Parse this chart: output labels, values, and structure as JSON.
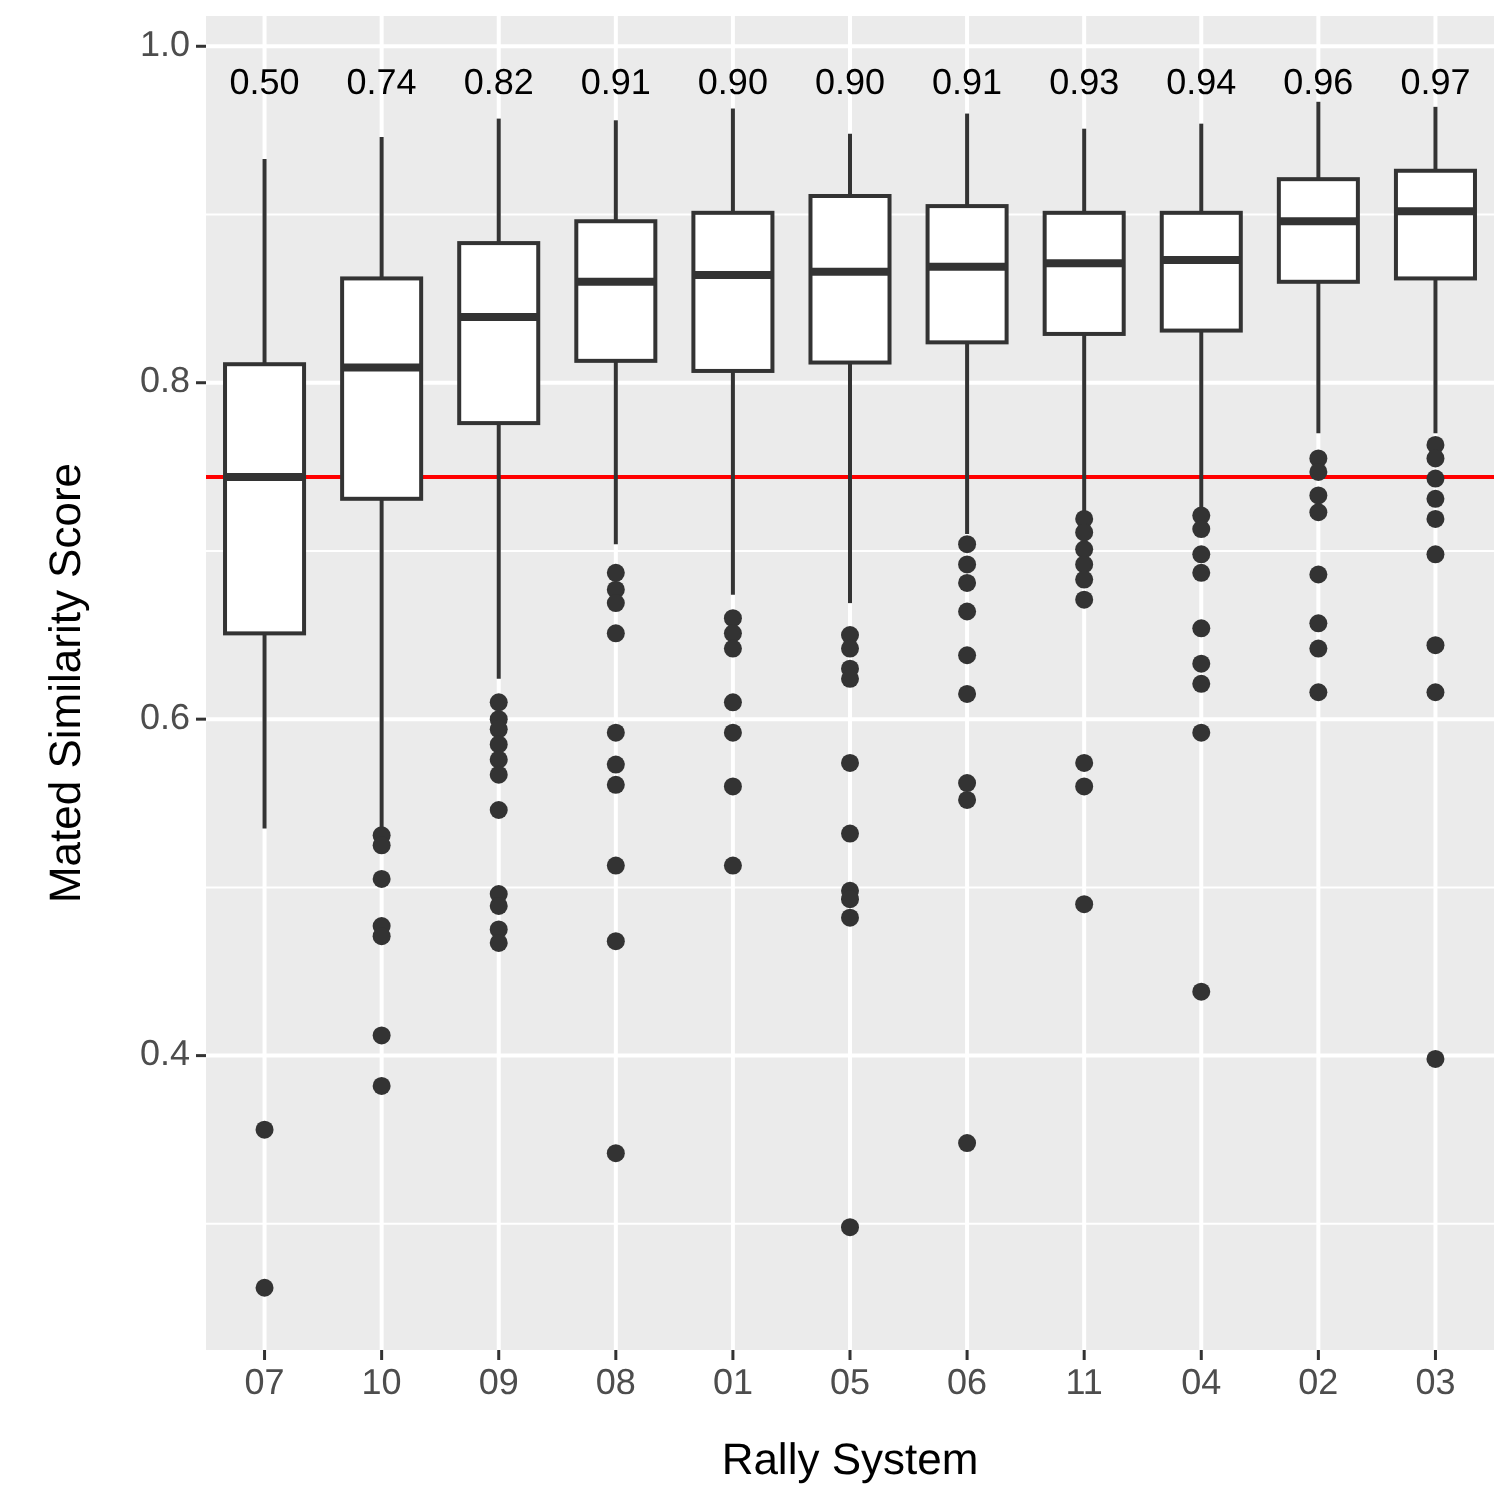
{
  "chart_data": {
    "type": "box",
    "xlabel": "Rally System",
    "ylabel": "Mated Similarity Score",
    "categories": [
      "07",
      "10",
      "09",
      "08",
      "01",
      "05",
      "06",
      "11",
      "04",
      "02",
      "03"
    ],
    "ylim": [
      0.225,
      1.018
    ],
    "yticks": [
      {
        "value": 0.4,
        "label": "0.4"
      },
      {
        "value": 0.6,
        "label": "0.6"
      },
      {
        "value": 0.8,
        "label": "0.8"
      },
      {
        "value": 1.0,
        "label": "1.0"
      }
    ],
    "grid": true,
    "color": "#333333",
    "boxes": [
      {
        "low": 0.535,
        "q1": 0.651,
        "median": 0.744,
        "q3": 0.811,
        "high": 0.933,
        "outliers": [
          0.356,
          0.262
        ]
      },
      {
        "low": 0.535,
        "q1": 0.731,
        "median": 0.809,
        "q3": 0.862,
        "high": 0.946,
        "outliers": [
          0.531,
          0.525,
          0.505,
          0.477,
          0.471,
          0.412,
          0.382
        ]
      },
      {
        "low": 0.624,
        "q1": 0.776,
        "median": 0.839,
        "q3": 0.883,
        "high": 0.957,
        "outliers": [
          0.61,
          0.6,
          0.594,
          0.585,
          0.576,
          0.567,
          0.546,
          0.496,
          0.489,
          0.475,
          0.467
        ]
      },
      {
        "low": 0.704,
        "q1": 0.813,
        "median": 0.86,
        "q3": 0.896,
        "high": 0.956,
        "outliers": [
          0.687,
          0.677,
          0.669,
          0.651,
          0.592,
          0.573,
          0.561,
          0.513,
          0.468,
          0.342
        ]
      },
      {
        "low": 0.674,
        "q1": 0.807,
        "median": 0.864,
        "q3": 0.901,
        "high": 0.963,
        "outliers": [
          0.66,
          0.651,
          0.642,
          0.61,
          0.592,
          0.56,
          0.513
        ]
      },
      {
        "low": 0.669,
        "q1": 0.812,
        "median": 0.866,
        "q3": 0.911,
        "high": 0.948,
        "outliers": [
          0.65,
          0.642,
          0.63,
          0.624,
          0.574,
          0.532,
          0.498,
          0.493,
          0.482,
          0.298
        ]
      },
      {
        "low": 0.71,
        "q1": 0.824,
        "median": 0.869,
        "q3": 0.905,
        "high": 0.96,
        "outliers": [
          0.704,
          0.692,
          0.681,
          0.664,
          0.638,
          0.615,
          0.562,
          0.552,
          0.348
        ]
      },
      {
        "low": 0.723,
        "q1": 0.829,
        "median": 0.871,
        "q3": 0.901,
        "high": 0.951,
        "outliers": [
          0.719,
          0.711,
          0.701,
          0.692,
          0.683,
          0.671,
          0.574,
          0.56,
          0.49
        ]
      },
      {
        "low": 0.726,
        "q1": 0.831,
        "median": 0.873,
        "q3": 0.901,
        "high": 0.954,
        "outliers": [
          0.721,
          0.713,
          0.698,
          0.687,
          0.654,
          0.633,
          0.621,
          0.592,
          0.438
        ]
      },
      {
        "low": 0.77,
        "q1": 0.86,
        "median": 0.896,
        "q3": 0.921,
        "high": 0.967,
        "outliers": [
          0.755,
          0.747,
          0.733,
          0.723,
          0.686,
          0.657,
          0.642,
          0.616
        ]
      },
      {
        "low": 0.77,
        "q1": 0.862,
        "median": 0.902,
        "q3": 0.926,
        "high": 0.964,
        "outliers": [
          0.763,
          0.755,
          0.743,
          0.731,
          0.719,
          0.698,
          0.644,
          0.616,
          0.398
        ]
      }
    ],
    "ref_lines": [
      {
        "axis": "y",
        "value": 0.744,
        "color": "#ff0000"
      }
    ],
    "annotations": [
      "0.50",
      "0.74",
      "0.82",
      "0.91",
      "0.90",
      "0.90",
      "0.91",
      "0.93",
      "0.94",
      "0.96",
      "0.97"
    ]
  }
}
